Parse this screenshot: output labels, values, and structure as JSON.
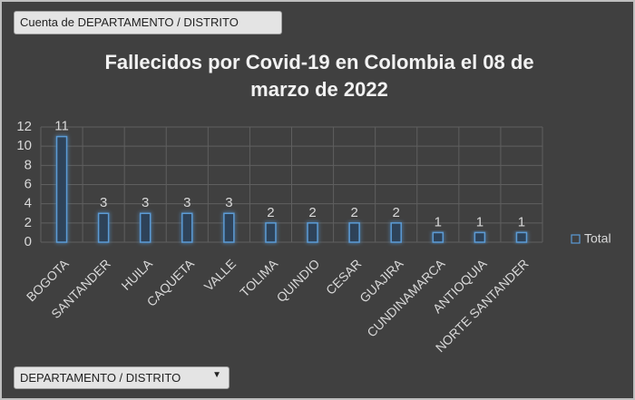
{
  "chart_data": {
    "type": "bar",
    "title": "Fallecidos por Covid-19 en Colombia el 08 de marzo de 2022",
    "report_filter": "Cuenta de DEPARTAMENTO / DISTRITO",
    "axis_field": "DEPARTAMENTO / DISTRITO",
    "categories": [
      "BOGOTA",
      "SANTANDER",
      "HUILA",
      "CAQUETA",
      "VALLE",
      "TOLIMA",
      "QUINDIO",
      "CESAR",
      "GUAJIRA",
      "CUNDINAMARCA",
      "ANTIOQUIA",
      "NORTE SANTANDER"
    ],
    "series": [
      {
        "name": "Total",
        "color": "#5b9bd5",
        "values": [
          11,
          3,
          3,
          3,
          3,
          2,
          2,
          2,
          2,
          1,
          1,
          1
        ]
      }
    ],
    "ylim": [
      0,
      12
    ],
    "yticks": [
      0,
      2,
      4,
      6,
      8,
      10,
      12
    ],
    "grid": true,
    "legend": "right"
  }
}
